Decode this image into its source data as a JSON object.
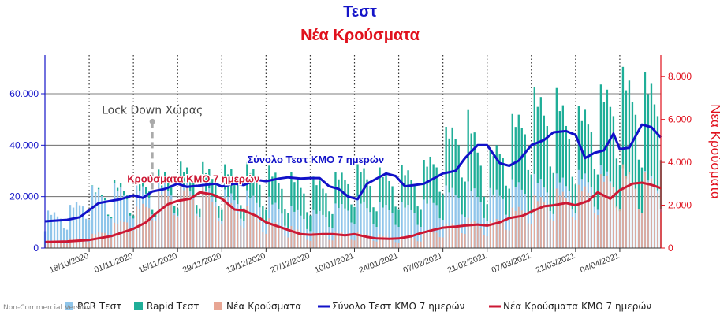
{
  "header": {
    "title": "Τεστ",
    "subtitle": "Νέα Κρούσματα"
  },
  "credit": "Non-Commercial Version",
  "colors": {
    "pcr": "#8fc5ea",
    "rapid": "#1fae98",
    "cases": "#e8a694",
    "tests_avg": "#1111c8",
    "cases_avg": "#cc1834",
    "left_axis": "#1515c8",
    "right_axis": "#e0101c"
  },
  "chart_data": {
    "type": "bar",
    "xlabel": "",
    "ylabel_left": "",
    "ylabel_right": "Νέα Κρούσματα",
    "ylim_left": [
      0,
      75000
    ],
    "ylim_right": [
      0,
      9000
    ],
    "yticks_left": [
      "0",
      "20.000",
      "40.000",
      "60.000"
    ],
    "yticks_right": [
      "0",
      "2.000",
      "4.000",
      "6.000",
      "8.000"
    ],
    "x_start": "2020-10-04",
    "x_end": "2021-04-17",
    "x_tick_labels": [
      "18/10/2020",
      "01/11/2020",
      "15/11/2020",
      "29/11/2020",
      "13/12/2020",
      "27/12/2020",
      "10/01/2021",
      "24/01/2021",
      "07/02/2021",
      "21/02/2021",
      "07/03/2021",
      "21/03/2021",
      "04/04/2021"
    ],
    "weekly_gridlines": true,
    "legend_position": "bottom",
    "legend": [
      "PCR Τεστ",
      "Rapid Τεστ",
      "Νέα Κρούσματα",
      "Σύνολο Τεστ ΚΜΟ 7 ημερών",
      "Νέα Κρούσματα ΚΜΟ 7 ημερών"
    ],
    "series": [
      {
        "name": "PCR Τεστ",
        "axis": "left",
        "kind": "bar-stacked",
        "points": [
          [
            "2020-10-04",
            12000
          ],
          [
            "2020-10-11",
            13000
          ],
          [
            "2020-10-18",
            20000
          ],
          [
            "2020-10-25",
            21000
          ],
          [
            "2020-11-01",
            21000
          ],
          [
            "2020-11-08",
            22000
          ],
          [
            "2020-11-15",
            23000
          ],
          [
            "2020-11-22",
            22000
          ],
          [
            "2020-11-29",
            19000
          ],
          [
            "2020-12-06",
            19000
          ],
          [
            "2020-12-13",
            17000
          ],
          [
            "2020-12-20",
            14000
          ],
          [
            "2020-12-27",
            12000
          ],
          [
            "2021-01-03",
            14000
          ],
          [
            "2021-01-10",
            17000
          ],
          [
            "2021-01-17",
            15000
          ],
          [
            "2021-01-24",
            15000
          ],
          [
            "2021-01-31",
            15000
          ],
          [
            "2021-02-07",
            20000
          ],
          [
            "2021-02-14",
            22000
          ],
          [
            "2021-02-21",
            19000
          ],
          [
            "2021-02-28",
            22000
          ],
          [
            "2021-03-07",
            24000
          ],
          [
            "2021-03-14",
            24000
          ],
          [
            "2021-03-21",
            25000
          ],
          [
            "2021-03-28",
            27000
          ],
          [
            "2021-04-04",
            26000
          ],
          [
            "2021-04-11",
            25000
          ],
          [
            "2021-04-17",
            25000
          ]
        ]
      },
      {
        "name": "Rapid Τεστ",
        "axis": "left",
        "kind": "bar-stacked",
        "points": [
          [
            "2020-10-04",
            0
          ],
          [
            "2020-10-11",
            0
          ],
          [
            "2020-10-18",
            0
          ],
          [
            "2020-10-25",
            1000
          ],
          [
            "2020-11-01",
            2000
          ],
          [
            "2020-11-08",
            3000
          ],
          [
            "2020-11-15",
            5000
          ],
          [
            "2020-11-22",
            6000
          ],
          [
            "2020-11-29",
            8000
          ],
          [
            "2020-12-06",
            9000
          ],
          [
            "2020-12-13",
            10000
          ],
          [
            "2020-12-20",
            11000
          ],
          [
            "2020-12-27",
            11000
          ],
          [
            "2021-01-03",
            10000
          ],
          [
            "2021-01-10",
            12000
          ],
          [
            "2021-01-17",
            11000
          ],
          [
            "2021-01-24",
            12000
          ],
          [
            "2021-01-31",
            12000
          ],
          [
            "2021-02-07",
            18000
          ],
          [
            "2021-02-14",
            25000
          ],
          [
            "2021-02-21",
            12000
          ],
          [
            "2021-02-28",
            20000
          ],
          [
            "2021-03-07",
            28000
          ],
          [
            "2021-03-14",
            29000
          ],
          [
            "2021-03-21",
            20000
          ],
          [
            "2021-03-28",
            25000
          ],
          [
            "2021-04-04",
            33000
          ],
          [
            "2021-04-11",
            32000
          ],
          [
            "2021-04-17",
            32000
          ]
        ]
      },
      {
        "name": "Νέα Κρούσματα",
        "axis": "right",
        "kind": "bar",
        "points": [
          [
            "2020-10-04",
            300
          ],
          [
            "2020-10-11",
            350
          ],
          [
            "2020-10-18",
            500
          ],
          [
            "2020-10-25",
            900
          ],
          [
            "2020-11-01",
            1500
          ],
          [
            "2020-11-08",
            2300
          ],
          [
            "2020-11-15",
            2600
          ],
          [
            "2020-11-22",
            2500
          ],
          [
            "2020-11-29",
            2000
          ],
          [
            "2020-12-06",
            1700
          ],
          [
            "2020-12-13",
            1200
          ],
          [
            "2020-12-20",
            900
          ],
          [
            "2020-12-27",
            600
          ],
          [
            "2021-01-03",
            650
          ],
          [
            "2021-01-10",
            650
          ],
          [
            "2021-01-17",
            550
          ],
          [
            "2021-01-24",
            450
          ],
          [
            "2021-01-31",
            550
          ],
          [
            "2021-02-07",
            900
          ],
          [
            "2021-02-14",
            1200
          ],
          [
            "2021-02-21",
            1000
          ],
          [
            "2021-02-28",
            1500
          ],
          [
            "2021-03-07",
            2000
          ],
          [
            "2021-03-14",
            2300
          ],
          [
            "2021-03-21",
            2400
          ],
          [
            "2021-03-28",
            2800
          ],
          [
            "2021-04-04",
            3300
          ],
          [
            "2021-04-11",
            3000
          ],
          [
            "2021-04-17",
            2800
          ]
        ]
      },
      {
        "name": "Σύνολο Τεστ ΚΜΟ 7 ημερών",
        "axis": "left",
        "kind": "line",
        "points": [
          [
            "2020-10-04",
            10400
          ],
          [
            "2020-10-11",
            11000
          ],
          [
            "2020-10-15",
            12000
          ],
          [
            "2020-10-21",
            17500
          ],
          [
            "2020-10-28",
            19000
          ],
          [
            "2020-11-01",
            20500
          ],
          [
            "2020-11-04",
            19500
          ],
          [
            "2020-11-07",
            22000
          ],
          [
            "2020-11-11",
            23000
          ],
          [
            "2020-11-15",
            25000
          ],
          [
            "2020-11-18",
            23800
          ],
          [
            "2020-11-22",
            24300
          ],
          [
            "2020-11-27",
            25000
          ],
          [
            "2020-11-29",
            23900
          ],
          [
            "2020-12-03",
            25000
          ],
          [
            "2020-12-06",
            24500
          ],
          [
            "2020-12-10",
            26500
          ],
          [
            "2020-12-13",
            26000
          ],
          [
            "2020-12-17",
            27000
          ],
          [
            "2020-12-20",
            27500
          ],
          [
            "2020-12-24",
            27000
          ],
          [
            "2020-12-27",
            27200
          ],
          [
            "2020-12-30",
            27200
          ],
          [
            "2021-01-02",
            24000
          ],
          [
            "2021-01-05",
            23000
          ],
          [
            "2021-01-08",
            20000
          ],
          [
            "2021-01-11",
            19000
          ],
          [
            "2021-01-14",
            25000
          ],
          [
            "2021-01-17",
            27000
          ],
          [
            "2021-01-20",
            29000
          ],
          [
            "2021-01-23",
            28000
          ],
          [
            "2021-01-26",
            24000
          ],
          [
            "2021-01-29",
            24500
          ],
          [
            "2021-02-01",
            25000
          ],
          [
            "2021-02-04",
            27000
          ],
          [
            "2021-02-07",
            29000
          ],
          [
            "2021-02-11",
            30000
          ],
          [
            "2021-02-14",
            35000
          ],
          [
            "2021-02-18",
            40000
          ],
          [
            "2021-02-21",
            40000
          ],
          [
            "2021-02-25",
            33000
          ],
          [
            "2021-02-28",
            32000
          ],
          [
            "2021-03-03",
            34000
          ],
          [
            "2021-03-07",
            40000
          ],
          [
            "2021-03-11",
            42000
          ],
          [
            "2021-03-14",
            45000
          ],
          [
            "2021-03-18",
            45500
          ],
          [
            "2021-03-21",
            44000
          ],
          [
            "2021-03-24",
            35000
          ],
          [
            "2021-03-27",
            37000
          ],
          [
            "2021-03-30",
            38000
          ],
          [
            "2021-04-02",
            44500
          ],
          [
            "2021-04-04",
            38500
          ],
          [
            "2021-04-07",
            39000
          ],
          [
            "2021-04-11",
            48000
          ],
          [
            "2021-04-14",
            47000
          ],
          [
            "2021-04-17",
            43000
          ]
        ]
      },
      {
        "name": "Νέα Κρούσματα ΚΜΟ 7 ημερών",
        "axis": "right",
        "kind": "line",
        "points": [
          [
            "2020-10-04",
            280
          ],
          [
            "2020-10-11",
            310
          ],
          [
            "2020-10-18",
            380
          ],
          [
            "2020-10-25",
            560
          ],
          [
            "2020-11-01",
            900
          ],
          [
            "2020-11-05",
            1200
          ],
          [
            "2020-11-08",
            1600
          ],
          [
            "2020-11-12",
            2050
          ],
          [
            "2020-11-15",
            2200
          ],
          [
            "2020-11-19",
            2300
          ],
          [
            "2020-11-22",
            2600
          ],
          [
            "2020-11-26",
            2500
          ],
          [
            "2020-11-29",
            2300
          ],
          [
            "2020-12-03",
            1800
          ],
          [
            "2020-12-06",
            1750
          ],
          [
            "2020-12-10",
            1500
          ],
          [
            "2020-12-13",
            1200
          ],
          [
            "2020-12-17",
            1000
          ],
          [
            "2020-12-20",
            850
          ],
          [
            "2020-12-24",
            650
          ],
          [
            "2020-12-27",
            620
          ],
          [
            "2020-12-31",
            650
          ],
          [
            "2021-01-03",
            650
          ],
          [
            "2021-01-07",
            600
          ],
          [
            "2021-01-10",
            650
          ],
          [
            "2021-01-14",
            520
          ],
          [
            "2021-01-17",
            450
          ],
          [
            "2021-01-21",
            430
          ],
          [
            "2021-01-24",
            450
          ],
          [
            "2021-01-28",
            550
          ],
          [
            "2021-01-31",
            700
          ],
          [
            "2021-02-04",
            850
          ],
          [
            "2021-02-07",
            950
          ],
          [
            "2021-02-11",
            1000
          ],
          [
            "2021-02-14",
            1050
          ],
          [
            "2021-02-18",
            1100
          ],
          [
            "2021-02-21",
            1050
          ],
          [
            "2021-02-25",
            1200
          ],
          [
            "2021-02-28",
            1400
          ],
          [
            "2021-03-04",
            1500
          ],
          [
            "2021-03-07",
            1700
          ],
          [
            "2021-03-11",
            1950
          ],
          [
            "2021-03-14",
            2000
          ],
          [
            "2021-03-18",
            2100
          ],
          [
            "2021-03-21",
            2000
          ],
          [
            "2021-03-25",
            2200
          ],
          [
            "2021-03-28",
            2600
          ],
          [
            "2021-04-01",
            2300
          ],
          [
            "2021-04-04",
            2700
          ],
          [
            "2021-04-08",
            3000
          ],
          [
            "2021-04-11",
            3050
          ],
          [
            "2021-04-14",
            2950
          ],
          [
            "2021-04-17",
            2800
          ]
        ]
      }
    ],
    "annotations": [
      {
        "text": "Lock Down Χώρας",
        "x": "2020-11-07",
        "y_right": 5900,
        "marker": "dot",
        "dashed_drop": true,
        "color": "#444444"
      },
      {
        "text": "Σύνολο Τεστ ΚΜΟ 7 ημερών",
        "x": "2020-12-07",
        "y_left": 33000,
        "color": "#1111c8"
      },
      {
        "text": "Κρούσματα ΚΜΟ 7 ημερών",
        "x": "2020-11-20",
        "y_left": 25500,
        "color": "#cc1834"
      }
    ]
  }
}
